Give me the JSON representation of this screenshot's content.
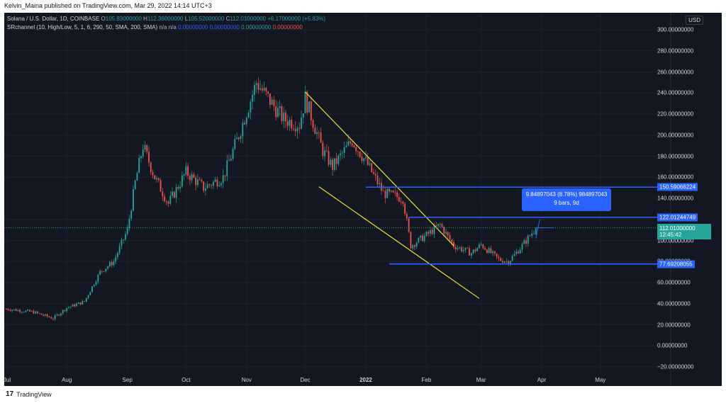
{
  "header": {
    "published_text": "Kelvin_Maina published on TradingView.com, Mar 29, 2022 14:14 UTC+3"
  },
  "legend": {
    "symbol": "Solana / U.S. Dollar, 1D, COINBASE",
    "o_label": "O",
    "o_value": "105.83000000",
    "h_label": "H",
    "h_value": "112.36000000",
    "l_label": "L",
    "l_value": "105.52000000",
    "c_label": "C",
    "c_value": "112.01000000",
    "change": "+6.17000000 (+5.83%)",
    "indicator": "SRchannel (10, High/Low, 5, 1, 6, 290, 50, SMA, 200, SMA)",
    "ind_na1": "n/a",
    "ind_na2": "n/a",
    "ind_v1": "0.00000000",
    "ind_v2": "0.00000000",
    "ind_v3": "0.00000000",
    "ind_v4": "0.00000000"
  },
  "currency": "USD",
  "y_axis": {
    "min": -20,
    "max": 300,
    "ticks": [
      "300.00000000",
      "280.00000000",
      "260.00000000",
      "240.00000000",
      "220.00000000",
      "200.00000000",
      "180.00000000",
      "160.00000000",
      "140.00000000",
      "120.00000000",
      "100.00000000",
      "80.00000000",
      "60.00000000",
      "40.00000000",
      "20.00000000",
      "0.00000000",
      "−20.00000000"
    ]
  },
  "x_axis": {
    "labels": [
      "Jul",
      "Aug",
      "Sep",
      "Oct",
      "Nov",
      "Dec",
      "2022",
      "Feb",
      "Mar",
      "Apr",
      "May"
    ]
  },
  "levels": {
    "upper": {
      "value": 150.59066224,
      "label": "150.59066224"
    },
    "middle": {
      "value": 122.01244749,
      "label": "122.01244749"
    },
    "lower": {
      "value": 77.69208055,
      "label": "77.69208055"
    }
  },
  "current_price": {
    "value": 112.01,
    "label": "112.01000000",
    "countdown": "12:45:42"
  },
  "measure": {
    "line1": "9.84897043 (8.78%) 984897043",
    "line2": "9 bars, 9d"
  },
  "channel": {
    "upper_start": {
      "date": "2021-12-01",
      "price": 241
    },
    "upper_end": {
      "date": "2022-02-15",
      "price": 95
    },
    "lower_start": {
      "date": "2021-12-08",
      "price": 151
    },
    "lower_end": {
      "date": "2022-02-28",
      "price": 45
    }
  },
  "chart_data": {
    "type": "candlestick",
    "title": "Solana / U.S. Dollar, 1D, COINBASE",
    "ylim": [
      -20,
      300
    ],
    "series": [
      {
        "name": "SOL/USD",
        "points": [
          {
            "date": "2021-07-01",
            "close": 35
          },
          {
            "date": "2021-07-15",
            "close": 32
          },
          {
            "date": "2021-07-25",
            "close": 26
          },
          {
            "date": "2021-08-01",
            "close": 36
          },
          {
            "date": "2021-08-10",
            "close": 42
          },
          {
            "date": "2021-08-18",
            "close": 70
          },
          {
            "date": "2021-08-25",
            "close": 80
          },
          {
            "date": "2021-09-01",
            "close": 110
          },
          {
            "date": "2021-09-05",
            "close": 155
          },
          {
            "date": "2021-09-09",
            "close": 190
          },
          {
            "date": "2021-09-15",
            "close": 160
          },
          {
            "date": "2021-09-22",
            "close": 135
          },
          {
            "date": "2021-10-01",
            "close": 165
          },
          {
            "date": "2021-10-10",
            "close": 150
          },
          {
            "date": "2021-10-20",
            "close": 160
          },
          {
            "date": "2021-10-28",
            "close": 200
          },
          {
            "date": "2021-11-06",
            "close": 250
          },
          {
            "date": "2021-11-12",
            "close": 235
          },
          {
            "date": "2021-11-20",
            "close": 215
          },
          {
            "date": "2021-11-28",
            "close": 210
          },
          {
            "date": "2021-12-01",
            "close": 235
          },
          {
            "date": "2021-12-10",
            "close": 185
          },
          {
            "date": "2021-12-15",
            "close": 170
          },
          {
            "date": "2021-12-25",
            "close": 195
          },
          {
            "date": "2022-01-01",
            "close": 175
          },
          {
            "date": "2022-01-10",
            "close": 145
          },
          {
            "date": "2022-01-20",
            "close": 140
          },
          {
            "date": "2022-01-24",
            "close": 95
          },
          {
            "date": "2022-02-01",
            "close": 105
          },
          {
            "date": "2022-02-08",
            "close": 115
          },
          {
            "date": "2022-02-15",
            "close": 95
          },
          {
            "date": "2022-02-24",
            "close": 88
          },
          {
            "date": "2022-03-01",
            "close": 96
          },
          {
            "date": "2022-03-10",
            "close": 82
          },
          {
            "date": "2022-03-15",
            "close": 80
          },
          {
            "date": "2022-03-22",
            "close": 95
          },
          {
            "date": "2022-03-29",
            "close": 112
          }
        ]
      }
    ]
  }
}
